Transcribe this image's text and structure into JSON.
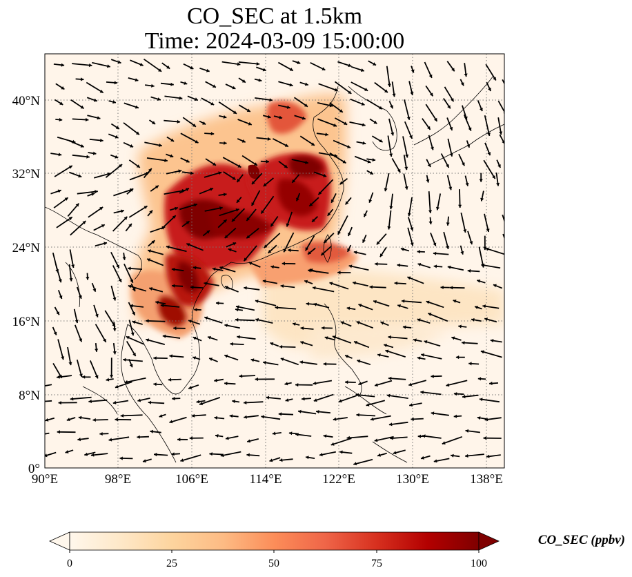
{
  "figure": {
    "title_line1": "CO_SEC at 1.5km",
    "title_line2": "Time: 2024-03-09 15:00:00"
  },
  "map": {
    "lon_ticks": [
      "90°E",
      "98°E",
      "106°E",
      "114°E",
      "122°E",
      "130°E",
      "138°E"
    ],
    "lat_ticks": [
      "0°",
      "8°N",
      "16°N",
      "24°N",
      "32°N",
      "40°N"
    ],
    "gridlines": true,
    "wind_vectors": true
  },
  "colorbar": {
    "label": "CO_SEC (ppbv)",
    "ticks": [
      "0",
      "25",
      "50",
      "75",
      "100"
    ],
    "range": [
      0,
      100
    ],
    "extend": "both",
    "colormap": "OrRd",
    "colors": [
      "#fff7ec",
      "#fee8c8",
      "#fdd49e",
      "#fdbb84",
      "#fc8d59",
      "#ef6548",
      "#d7301f",
      "#b30000",
      "#7f0000"
    ]
  }
}
